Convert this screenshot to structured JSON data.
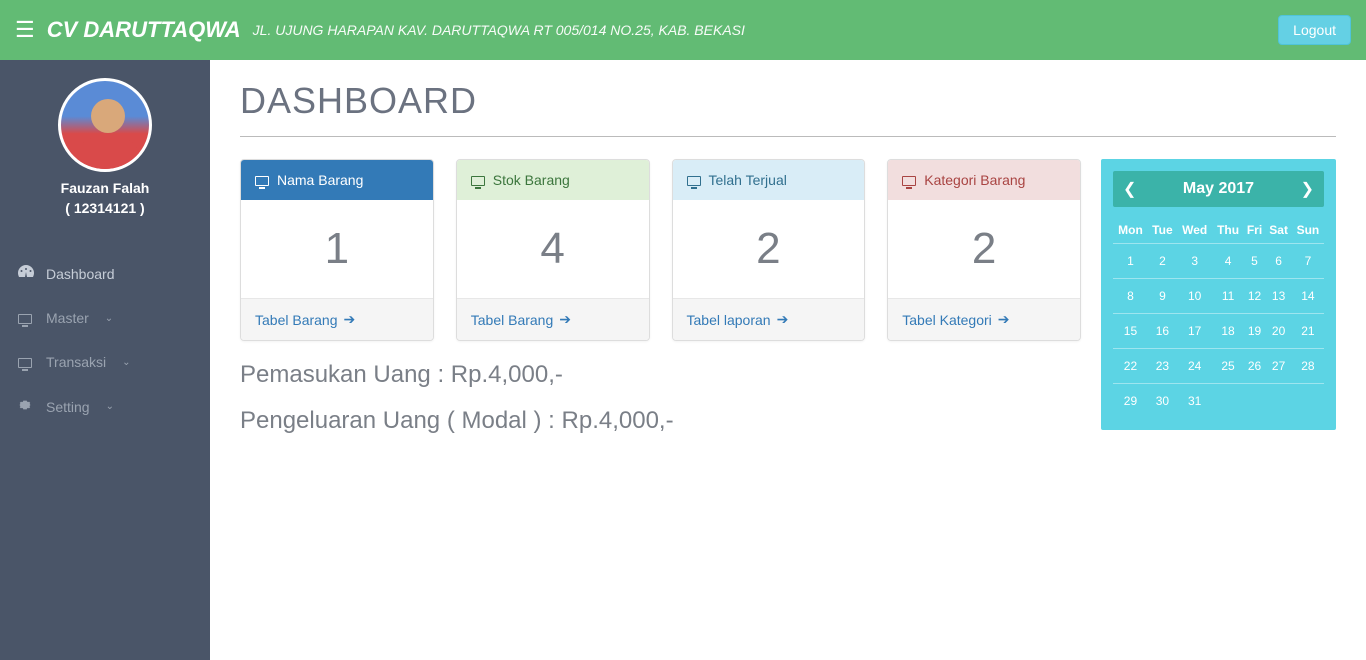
{
  "header": {
    "brand": "CV DARUTTAQWA",
    "subtitle": "JL. UJUNG HARAPAN KAV. DARUTTAQWA RT 005/014 NO.25, KAB. BEKASI",
    "logout": "Logout"
  },
  "sidebar": {
    "user_name": "Fauzan Falah",
    "user_id": "( 12314121 )",
    "items": [
      {
        "label": "Dashboard",
        "icon": "dashboard",
        "expandable": false
      },
      {
        "label": "Master",
        "icon": "monitor",
        "expandable": true
      },
      {
        "label": "Transaksi",
        "icon": "monitor",
        "expandable": true
      },
      {
        "label": "Setting",
        "icon": "gear",
        "expandable": true
      }
    ]
  },
  "page": {
    "title": "DASHBOARD"
  },
  "cards": [
    {
      "title": "Nama Barang",
      "value": "1",
      "link_text": "Tabel Barang",
      "heading_bg": "#337ab7",
      "heading_color": "#ffffff",
      "link_color": "#337ab7"
    },
    {
      "title": "Stok Barang",
      "value": "4",
      "link_text": "Tabel Barang",
      "heading_bg": "#dff0d8",
      "heading_color": "#3c763d",
      "link_color": "#337ab7"
    },
    {
      "title": "Telah Terjual",
      "value": "2",
      "link_text": "Tabel laporan",
      "heading_bg": "#d9edf7",
      "heading_color": "#31708f",
      "link_color": "#337ab7"
    },
    {
      "title": "Kategori Barang",
      "value": "2",
      "link_text": "Tabel Kategori",
      "heading_bg": "#f2dede",
      "heading_color": "#a94442",
      "link_color": "#337ab7"
    }
  ],
  "summary": {
    "income_label": "Pemasukan Uang : Rp.4,000,-",
    "expense_label": "Pengeluaran Uang ( Modal ) : Rp.4,000,-"
  },
  "calendar": {
    "title": "May 2017",
    "days": [
      "Mon",
      "Tue",
      "Wed",
      "Thu",
      "Fri",
      "Sat",
      "Sun"
    ],
    "weeks": [
      [
        "1",
        "2",
        "3",
        "4",
        "5",
        "6",
        "7"
      ],
      [
        "8",
        "9",
        "10",
        "11",
        "12",
        "13",
        "14"
      ],
      [
        "15",
        "16",
        "17",
        "18",
        "19",
        "20",
        "21"
      ],
      [
        "22",
        "23",
        "24",
        "25",
        "26",
        "27",
        "28"
      ],
      [
        "29",
        "30",
        "31",
        "",
        "",
        "",
        ""
      ]
    ],
    "colors": {
      "bg": "#5cd4e4",
      "header_bg": "#3bb3a9"
    }
  }
}
